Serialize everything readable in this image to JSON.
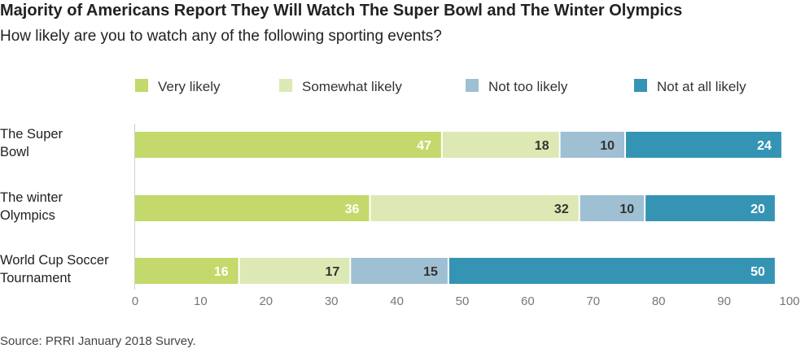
{
  "title": "Majority of Americans Report They Will Watch The Super Bowl and The Winter Olympics",
  "subtitle": "How likely are you to watch any of the following sporting events?",
  "source": "Source: PRRI January 2018 Survey.",
  "chart_data": {
    "type": "bar",
    "orientation": "horizontal",
    "stacked": true,
    "categories": [
      [
        "The Super",
        "Bowl"
      ],
      [
        "The winter",
        "Olympics"
      ],
      [
        "World Cup Soccer",
        "Tournament"
      ]
    ],
    "series": [
      {
        "name": "Very likely",
        "color": "#c3d96b",
        "label_color": "#ffffff",
        "values": [
          47,
          36,
          16
        ]
      },
      {
        "name": "Somewhat likely",
        "color": "#dde9b5",
        "label_color": "#333333",
        "values": [
          18,
          32,
          17
        ]
      },
      {
        "name": "Not too likely",
        "color": "#9fbfd3",
        "label_color": "#333333",
        "values": [
          10,
          10,
          15
        ]
      },
      {
        "name": "Not at all likely",
        "color": "#3594b4",
        "label_color": "#ffffff",
        "values": [
          24,
          20,
          50
        ]
      }
    ],
    "xlim": [
      0,
      100
    ],
    "xticks": [
      0,
      10,
      20,
      30,
      40,
      50,
      60,
      70,
      80,
      90,
      100
    ],
    "legend": "top",
    "grid": false
  }
}
